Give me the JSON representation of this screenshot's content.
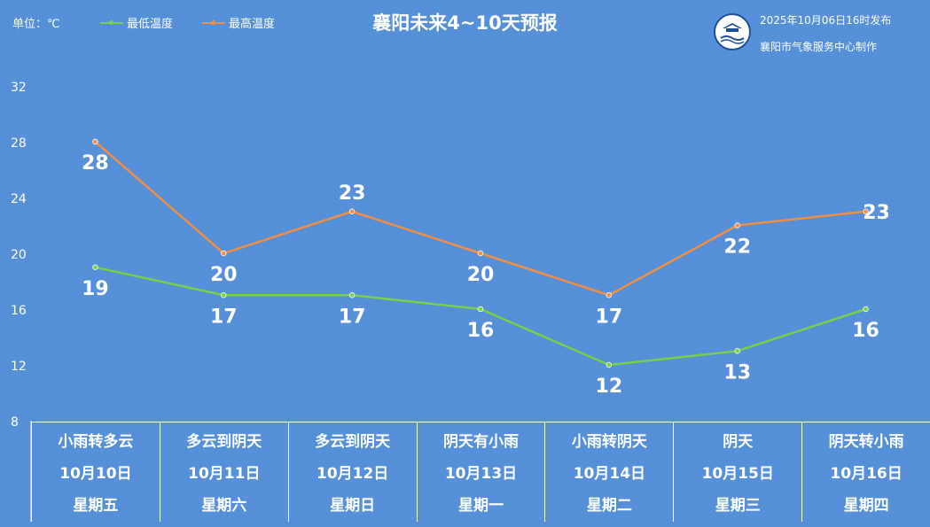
{
  "header": {
    "unit": "单位：℃",
    "title": "襄阳未来4~10天预报",
    "published": "2025年10月06日16时发布",
    "organization": "襄阳市气象服务中心制作",
    "logo_icon": "xiangyang-weather-logo-icon"
  },
  "colors": {
    "background": "#5590d8",
    "low_series": "#7cd04a",
    "high_series": "#f39048",
    "text": "#ffffff"
  },
  "chart_data": {
    "type": "line",
    "title": "襄阳未来4~10天预报",
    "ylabel": "单位：℃",
    "ylim": [
      8,
      32
    ],
    "yticks": [
      8,
      12,
      16,
      20,
      24,
      28,
      32
    ],
    "grid": false,
    "legend": "top-left",
    "categories": [
      "10月10日",
      "10月11日",
      "10月12日",
      "10月13日",
      "10月14日",
      "10月15日",
      "10月16日"
    ],
    "series": [
      {
        "name": "最低温度",
        "values": [
          19,
          17,
          17,
          16,
          12,
          13,
          16
        ]
      },
      {
        "name": "最高温度",
        "values": [
          28,
          20,
          23,
          20,
          17,
          22,
          23
        ]
      }
    ]
  },
  "days": [
    {
      "weather": "小雨转多云",
      "date": "10月10日",
      "weekday": "星期五"
    },
    {
      "weather": "多云到阴天",
      "date": "10月11日",
      "weekday": "星期六"
    },
    {
      "weather": "多云到阴天",
      "date": "10月12日",
      "weekday": "星期日"
    },
    {
      "weather": "阴天有小雨",
      "date": "10月13日",
      "weekday": "星期一"
    },
    {
      "weather": "小雨转阴天",
      "date": "10月14日",
      "weekday": "星期二"
    },
    {
      "weather": "阴天",
      "date": "10月15日",
      "weekday": "星期三"
    },
    {
      "weather": "阴天转小雨",
      "date": "10月16日",
      "weekday": "星期四"
    }
  ]
}
